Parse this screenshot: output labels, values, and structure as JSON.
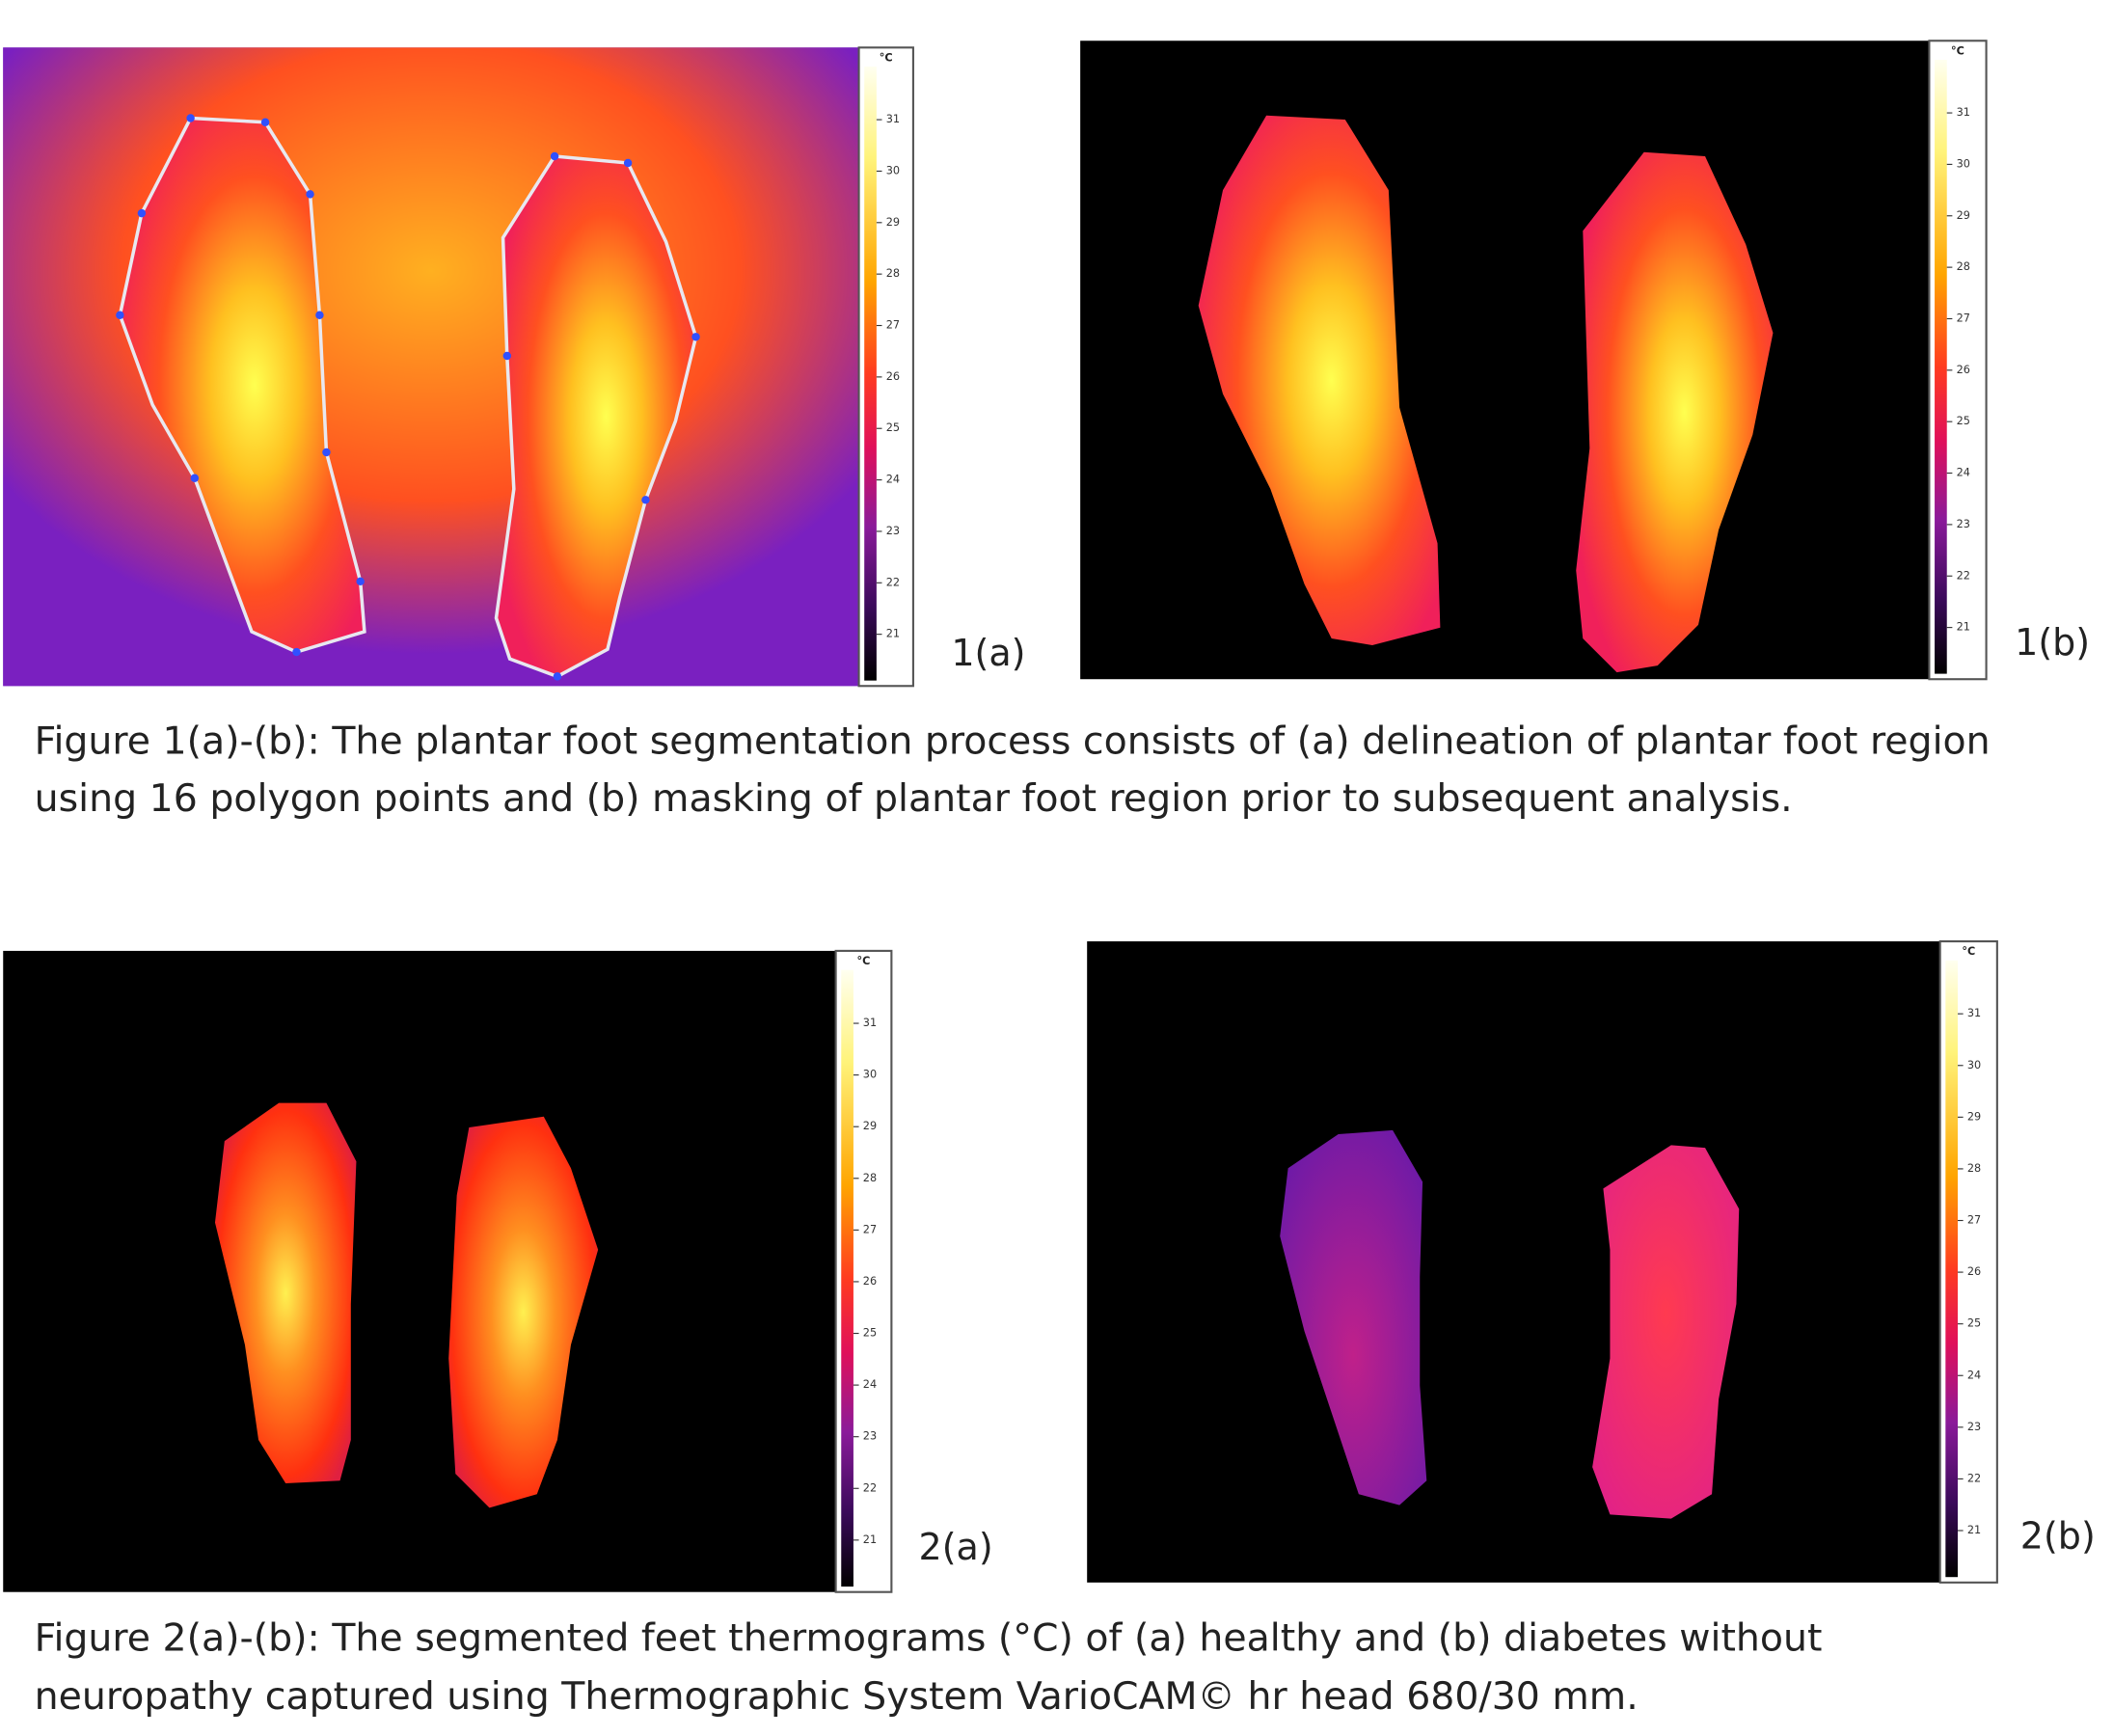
{
  "panels": [
    {
      "label": "1(a)",
      "colorbar": {
        "unit": "°C",
        "ticks": [
          21,
          22,
          23,
          24,
          25,
          26,
          27,
          28,
          29,
          30,
          31
        ]
      }
    },
    {
      "label": "1(b)",
      "colorbar": {
        "unit": "°C",
        "ticks": [
          21,
          22,
          23,
          24,
          25,
          26,
          27,
          28,
          29,
          30,
          31
        ]
      }
    },
    {
      "label": "2(a)",
      "colorbar": {
        "unit": "°C",
        "ticks": [
          21,
          22,
          23,
          24,
          25,
          26,
          27,
          28,
          29,
          30,
          31
        ]
      }
    },
    {
      "label": "2(b)",
      "colorbar": {
        "unit": "°C",
        "ticks": [
          21,
          22,
          23,
          24,
          25,
          26,
          27,
          28,
          29,
          30,
          31
        ]
      }
    }
  ],
  "captions": [
    {
      "lines": [
        "Figure 1(a)-(b): The plantar foot segmentation process consists of (a) delineation of plantar foot region",
        "using 16 polygon points and (b) masking of plantar foot region prior to subsequent analysis."
      ]
    },
    {
      "lines": [
        "Figure 2(a)-(b): The segmented feet thermograms (°C) of (a) healthy and (b) diabetes without",
        "neuropathy captured using Thermographic System VarioCAM© hr head 680/30 mm."
      ]
    }
  ]
}
